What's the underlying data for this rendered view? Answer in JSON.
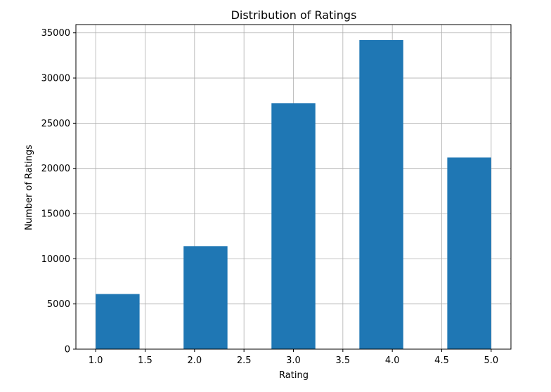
{
  "chart_data": {
    "type": "bar",
    "title": "Distribution of Ratings",
    "xlabel": "Rating",
    "ylabel": "Number of Ratings",
    "bins": [
      {
        "start": 1.0,
        "end": 1.444,
        "value": 6100
      },
      {
        "start": 1.889,
        "end": 2.333,
        "value": 11400
      },
      {
        "start": 2.778,
        "end": 3.222,
        "value": 27200
      },
      {
        "start": 3.667,
        "end": 4.111,
        "value": 34200
      },
      {
        "start": 4.556,
        "end": 5.0,
        "value": 21200
      }
    ],
    "xlim": [
      0.8,
      5.2
    ],
    "ylim": [
      0,
      35912
    ],
    "x_ticks": [
      "1.0",
      "1.5",
      "2.0",
      "2.5",
      "3.0",
      "3.5",
      "4.0",
      "4.5",
      "5.0"
    ],
    "y_ticks": [
      "0",
      "5000",
      "10000",
      "15000",
      "20000",
      "25000",
      "30000",
      "35000"
    ],
    "grid": true,
    "bar_color": "#1f77b4",
    "grid_color": "#b0b0b0"
  }
}
